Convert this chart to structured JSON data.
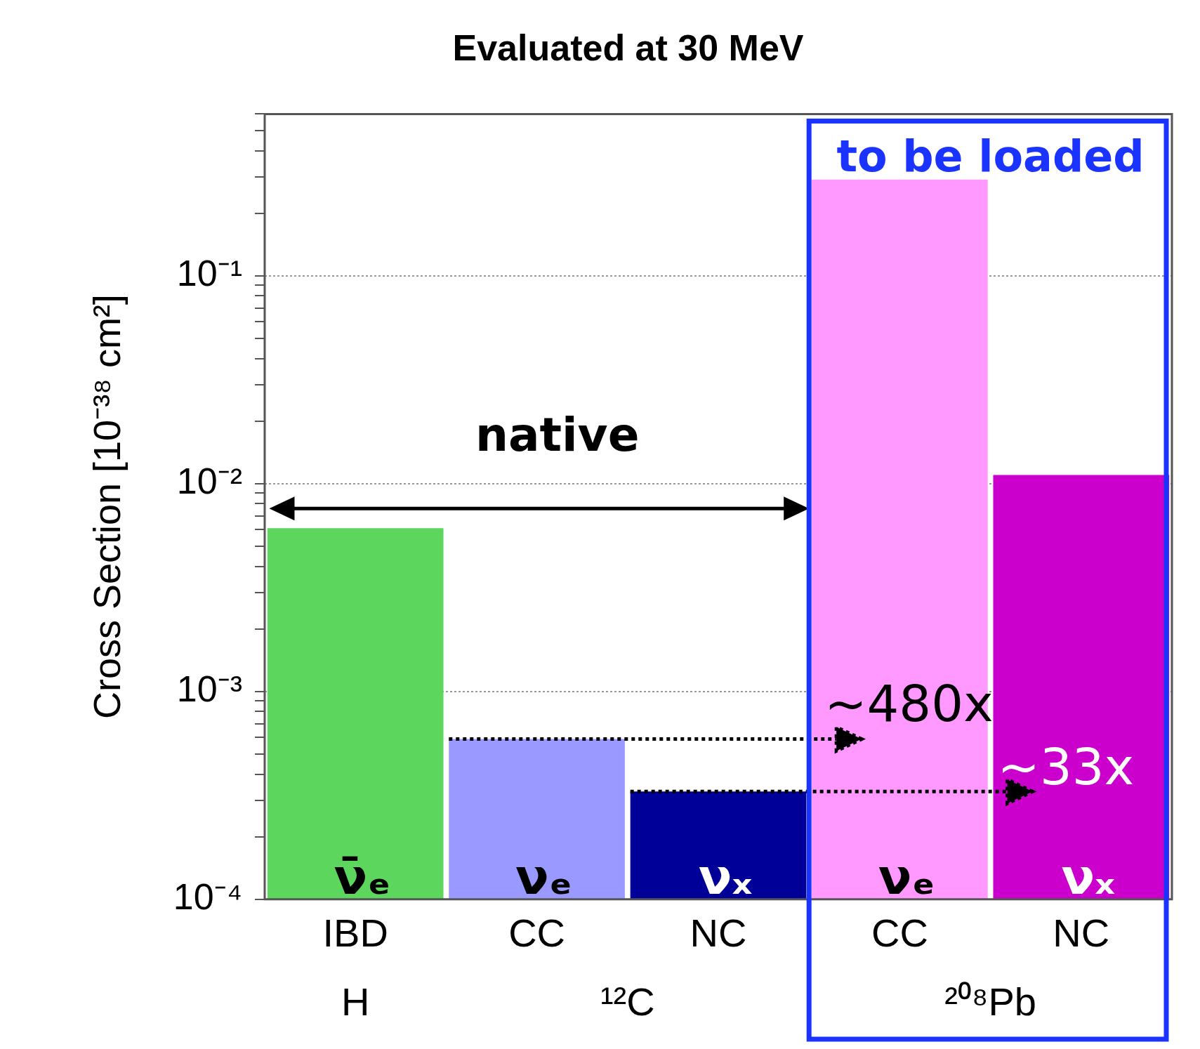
{
  "chart_data": {
    "type": "bar",
    "title": "Evaluated at 30 MeV",
    "ylabel": "Cross Section [10⁻³⁸ cm²]",
    "categories": [
      "IBD",
      "CC",
      "NC",
      "CC",
      "NC"
    ],
    "values": [
      0.0061,
      0.00059,
      0.00033,
      0.29,
      0.011
    ],
    "colors": [
      "#5cd65c",
      "#9999ff",
      "#000099",
      "#ff99ff",
      "#cc00cc"
    ],
    "log": true,
    "ylim": [
      0.0001,
      0.6
    ],
    "yticks": [
      {
        "value": 0.0001,
        "label": "10⁻⁴"
      },
      {
        "value": 0.0002,
        "label": null
      },
      {
        "value": 0.0003,
        "label": null
      },
      {
        "value": 0.0004,
        "label": null
      },
      {
        "value": 0.0005,
        "label": null
      },
      {
        "value": 0.0006,
        "label": null
      },
      {
        "value": 0.0007,
        "label": null
      },
      {
        "value": 0.0008,
        "label": null
      },
      {
        "value": 0.0009,
        "label": null
      },
      {
        "value": 0.001,
        "label": "10⁻³"
      },
      {
        "value": 0.002,
        "label": null
      },
      {
        "value": 0.003,
        "label": null
      },
      {
        "value": 0.004,
        "label": null
      },
      {
        "value": 0.005,
        "label": null
      },
      {
        "value": 0.006,
        "label": null
      },
      {
        "value": 0.007,
        "label": null
      },
      {
        "value": 0.008,
        "label": null
      },
      {
        "value": 0.009,
        "label": null
      },
      {
        "value": 0.01,
        "label": "10⁻²"
      },
      {
        "value": 0.02,
        "label": null
      },
      {
        "value": 0.03,
        "label": null
      },
      {
        "value": 0.04,
        "label": null
      },
      {
        "value": 0.05,
        "label": null
      },
      {
        "value": 0.06,
        "label": null
      },
      {
        "value": 0.07,
        "label": null
      },
      {
        "value": 0.08,
        "label": null
      },
      {
        "value": 0.09,
        "label": null
      },
      {
        "value": 0.1,
        "label": "10⁻¹"
      },
      {
        "value": 0.2,
        "label": null
      },
      {
        "value": 0.3,
        "label": null
      },
      {
        "value": 0.4,
        "label": null
      },
      {
        "value": 0.5,
        "label": null
      },
      {
        "value": 0.6,
        "label": null
      }
    ],
    "grid": "y",
    "legend": false,
    "annotations": [
      "native",
      "to be loaded",
      "~480x",
      "~33x",
      "ν̄ₑ",
      "νₑ",
      "νₓ",
      "νₑ",
      "νₓ",
      "H",
      "¹²C",
      "²⁰⁸Pb"
    ]
  }
}
